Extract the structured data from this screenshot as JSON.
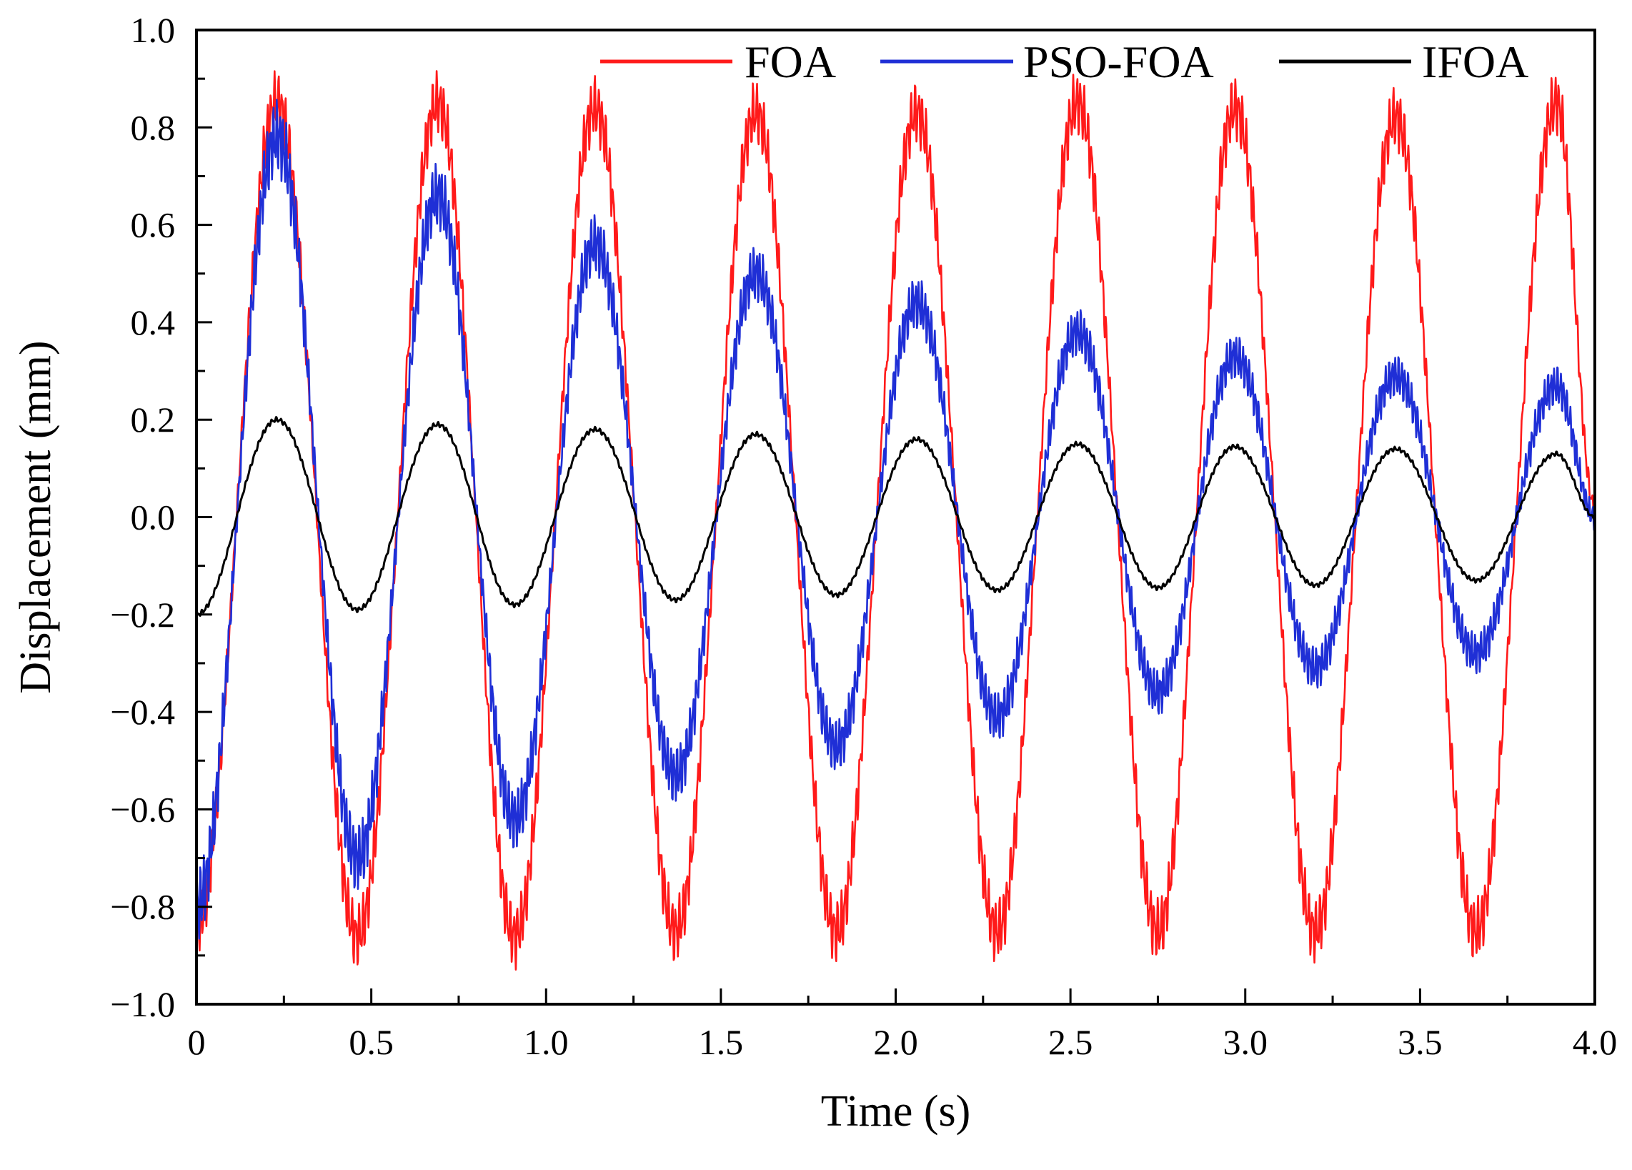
{
  "chart_data": {
    "type": "line",
    "title": "",
    "xlabel": "Time (s)",
    "ylabel": "Displacement (mm)",
    "xlim": [
      0,
      4.0
    ],
    "ylim": [
      -1.0,
      1.0
    ],
    "x_ticks": [
      0,
      0.5,
      1.0,
      1.5,
      2.0,
      2.5,
      3.0,
      3.5,
      4.0
    ],
    "x_tick_labels": [
      "0",
      "0.5",
      "1.0",
      "1.5",
      "2.0",
      "2.5",
      "3.0",
      "3.5",
      "4.0"
    ],
    "y_ticks": [
      1.0,
      0.8,
      0.6,
      0.4,
      0.2,
      0.0,
      -0.2,
      -0.4,
      -0.6,
      -0.8,
      -1.0
    ],
    "y_tick_labels": [
      "1.0",
      "0.8",
      "0.6",
      "0.4",
      "0.2",
      "0.0",
      "−0.2",
      "−0.4",
      "−0.6",
      "−0.8",
      "−1.0"
    ],
    "grid": false,
    "legend_position": "top-right",
    "series": [
      {
        "name": "FOA",
        "color": "#ff1a1a",
        "x": [
          0,
          0.23,
          0.46,
          0.69,
          0.91,
          1.14,
          1.37,
          1.6,
          1.83,
          2.06,
          2.29,
          2.52,
          2.75,
          2.97,
          3.2,
          3.43,
          3.66,
          3.89,
          4.0
        ],
        "y": [
          -0.84,
          0.85,
          -0.86,
          0.85,
          -0.86,
          0.84,
          -0.85,
          0.83,
          -0.85,
          0.83,
          -0.85,
          0.85,
          -0.85,
          0.84,
          -0.85,
          0.82,
          -0.85,
          0.85,
          0.02
        ]
      },
      {
        "name": "PSO-FOA",
        "color": "#1f2fd6",
        "x": [
          0,
          0.23,
          0.46,
          0.69,
          0.91,
          1.14,
          1.37,
          1.6,
          1.83,
          2.06,
          2.29,
          2.52,
          2.75,
          2.97,
          3.2,
          3.43,
          3.66,
          3.89,
          4.0
        ],
        "y": [
          -0.8,
          0.78,
          -0.7,
          0.66,
          -0.62,
          0.56,
          -0.53,
          0.5,
          -0.47,
          0.44,
          -0.41,
          0.38,
          -0.36,
          0.33,
          -0.31,
          0.29,
          -0.28,
          0.27,
          0.0
        ]
      },
      {
        "name": "IFOA",
        "color": "#000000",
        "x": [
          0,
          0.23,
          0.46,
          0.69,
          0.91,
          1.14,
          1.37,
          1.6,
          1.83,
          2.06,
          2.29,
          2.52,
          2.75,
          2.97,
          3.2,
          3.43,
          3.66,
          3.89,
          4.0
        ],
        "y": [
          -0.2,
          0.2,
          -0.19,
          0.19,
          -0.18,
          0.18,
          -0.17,
          0.17,
          -0.16,
          0.16,
          -0.15,
          0.15,
          -0.145,
          0.145,
          -0.14,
          0.14,
          -0.13,
          0.13,
          0.0
        ]
      }
    ]
  }
}
